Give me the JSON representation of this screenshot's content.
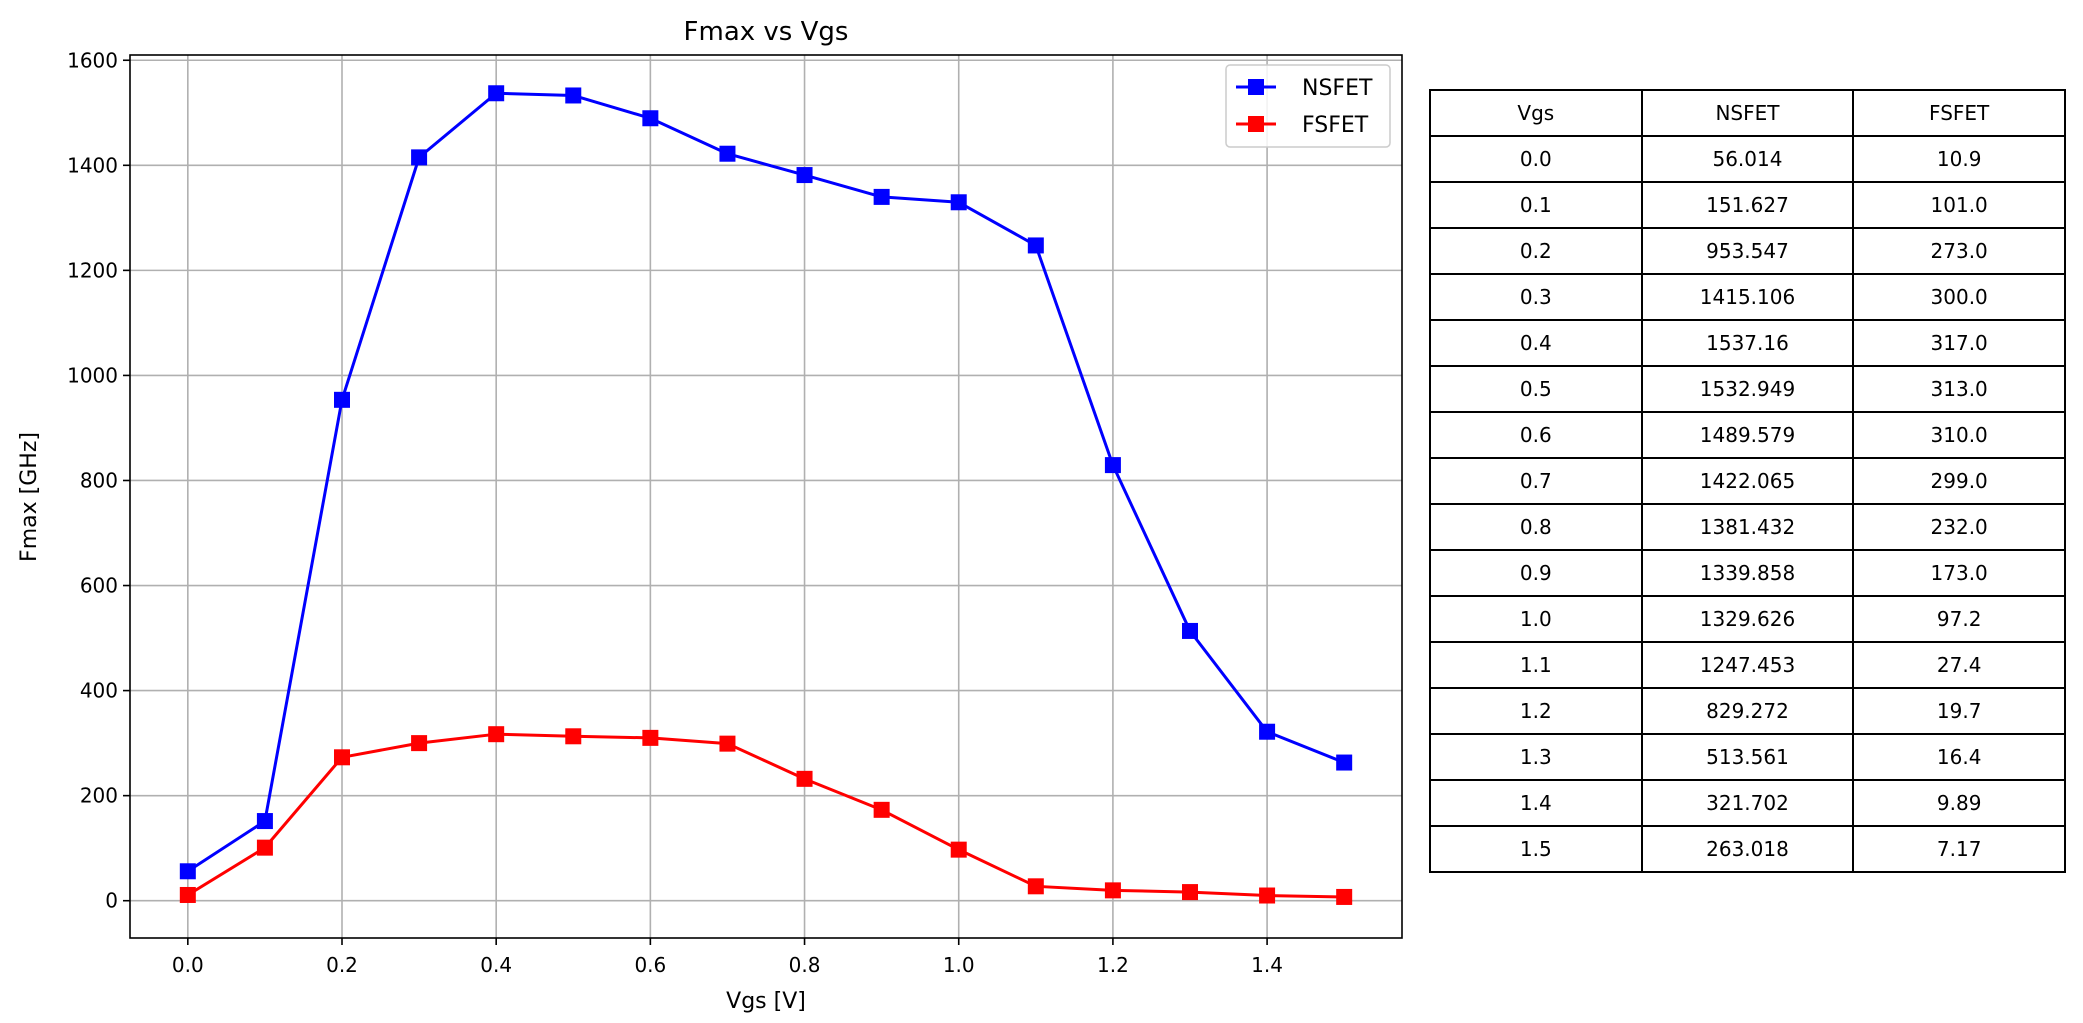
{
  "chart_data": {
    "type": "line",
    "title": "Fmax vs Vgs",
    "xlabel": "Vgs [V]",
    "ylabel": "Fmax [GHz]",
    "x": [
      0.0,
      0.1,
      0.2,
      0.3,
      0.4,
      0.5,
      0.6,
      0.7,
      0.8,
      0.9,
      1.0,
      1.1,
      1.2,
      1.3,
      1.4,
      1.5
    ],
    "xlim": [
      -0.075,
      1.575
    ],
    "ylim": [
      -71,
      1610
    ],
    "xticks": [
      "0.0",
      "0.2",
      "0.4",
      "0.6",
      "0.8",
      "1.0",
      "1.2",
      "1.4"
    ],
    "yticks": [
      "0",
      "200",
      "400",
      "600",
      "800",
      "1000",
      "1200",
      "1400",
      "1600"
    ],
    "grid": true,
    "legend_position": "top-right",
    "series": [
      {
        "name": "NSFET",
        "color": "#0000ff",
        "marker": "square",
        "values": [
          56.014,
          151.627,
          953.547,
          1415.106,
          1537.16,
          1532.949,
          1489.579,
          1422.065,
          1381.432,
          1339.858,
          1329.626,
          1247.453,
          829.272,
          513.561,
          321.702,
          263.018
        ]
      },
      {
        "name": "FSFET",
        "color": "#ff0000",
        "marker": "square",
        "values": [
          10.9,
          101.0,
          273.0,
          300.0,
          317.0,
          313.0,
          310.0,
          299.0,
          232.0,
          173.0,
          97.2,
          27.4,
          19.7,
          16.4,
          9.89,
          7.17
        ]
      }
    ]
  },
  "table": {
    "headers": [
      "Vgs",
      "NSFET",
      "FSFET"
    ],
    "rows": [
      [
        "0.0",
        "56.014",
        "10.9"
      ],
      [
        "0.1",
        "151.627",
        "101.0"
      ],
      [
        "0.2",
        "953.547",
        "273.0"
      ],
      [
        "0.3",
        "1415.106",
        "300.0"
      ],
      [
        "0.4",
        "1537.16",
        "317.0"
      ],
      [
        "0.5",
        "1532.949",
        "313.0"
      ],
      [
        "0.6",
        "1489.579",
        "310.0"
      ],
      [
        "0.7",
        "1422.065",
        "299.0"
      ],
      [
        "0.8",
        "1381.432",
        "232.0"
      ],
      [
        "0.9",
        "1339.858",
        "173.0"
      ],
      [
        "1.0",
        "1329.626",
        "97.2"
      ],
      [
        "1.1",
        "1247.453",
        "27.4"
      ],
      [
        "1.2",
        "829.272",
        "19.7"
      ],
      [
        "1.3",
        "513.561",
        "16.4"
      ],
      [
        "1.4",
        "321.702",
        "9.89"
      ],
      [
        "1.5",
        "263.018",
        "7.17"
      ]
    ]
  }
}
